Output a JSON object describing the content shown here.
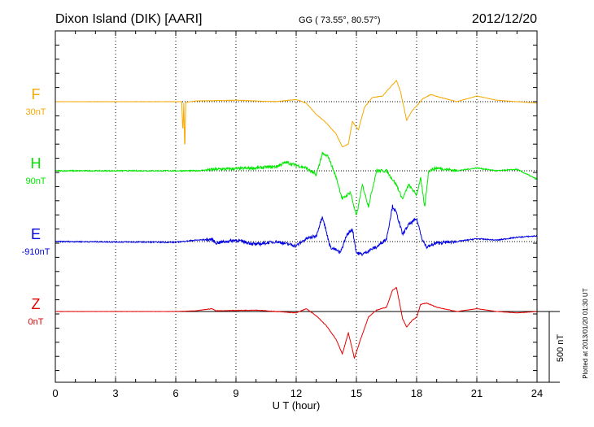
{
  "chart_data": {
    "type": "line",
    "title": "Dixon Island (DIK)  [AARI]",
    "subtitle": "GG ( 73.55°,  80.57°)",
    "date": "2012/12/20",
    "xlabel": "U T (hour)",
    "xlim": [
      0,
      24
    ],
    "xticks": [
      "0",
      "3",
      "6",
      "9",
      "12",
      "15",
      "18",
      "21",
      "24"
    ],
    "grid": true,
    "scale_bar": "500 nT",
    "footer": "Plotted at 2013/01/20 01:30 UT",
    "series": [
      {
        "name": "F",
        "offset_label": "30nT",
        "color": "#f5a800",
        "points": [
          [
            0,
            0
          ],
          [
            6.3,
            0
          ],
          [
            6.35,
            -230
          ],
          [
            6.4,
            -10
          ],
          [
            6.45,
            -370
          ],
          [
            6.5,
            -5
          ],
          [
            7,
            5
          ],
          [
            9,
            10
          ],
          [
            11,
            0
          ],
          [
            12,
            15
          ],
          [
            12.5,
            -10
          ],
          [
            13,
            -90
          ],
          [
            13.5,
            -150
          ],
          [
            14,
            -230
          ],
          [
            14.3,
            -320
          ],
          [
            14.6,
            -300
          ],
          [
            14.8,
            -140
          ],
          [
            15.1,
            -200
          ],
          [
            15.4,
            -40
          ],
          [
            15.8,
            30
          ],
          [
            16.3,
            40
          ],
          [
            16.8,
            120
          ],
          [
            17,
            150
          ],
          [
            17.2,
            70
          ],
          [
            17.5,
            -130
          ],
          [
            17.8,
            -60
          ],
          [
            18,
            -30
          ],
          [
            18.3,
            20
          ],
          [
            18.7,
            50
          ],
          [
            19.2,
            30
          ],
          [
            20,
            0
          ],
          [
            21,
            40
          ],
          [
            22,
            10
          ],
          [
            24,
            -10
          ]
        ]
      },
      {
        "name": "H",
        "offset_label": "90nT",
        "color": "#00e800",
        "points": [
          [
            0,
            0
          ],
          [
            5,
            0
          ],
          [
            7,
            0
          ],
          [
            8,
            10
          ],
          [
            9,
            15
          ],
          [
            10,
            20
          ],
          [
            11,
            30
          ],
          [
            11.5,
            60
          ],
          [
            12,
            40
          ],
          [
            12.5,
            20
          ],
          [
            13,
            -30
          ],
          [
            13.3,
            120
          ],
          [
            13.6,
            100
          ],
          [
            14,
            -50
          ],
          [
            14.3,
            -200
          ],
          [
            14.7,
            -150
          ],
          [
            15,
            -320
          ],
          [
            15.3,
            -100
          ],
          [
            15.6,
            -250
          ],
          [
            16,
            0
          ],
          [
            16.5,
            0
          ],
          [
            17,
            -100
          ],
          [
            17.3,
            -200
          ],
          [
            17.6,
            -100
          ],
          [
            18,
            -170
          ],
          [
            18.2,
            -50
          ],
          [
            18.4,
            -260
          ],
          [
            18.6,
            0
          ],
          [
            19,
            20
          ],
          [
            20,
            0
          ],
          [
            21,
            20
          ],
          [
            22,
            0
          ],
          [
            23,
            10
          ],
          [
            24,
            -60
          ]
        ]
      },
      {
        "name": "E",
        "offset_label": "-910nT",
        "color": "#0000e0",
        "points": [
          [
            0,
            0
          ],
          [
            6,
            -5
          ],
          [
            7,
            10
          ],
          [
            7.8,
            15
          ],
          [
            8,
            -10
          ],
          [
            9,
            10
          ],
          [
            10,
            -20
          ],
          [
            11,
            0
          ],
          [
            12,
            -30
          ],
          [
            12.5,
            20
          ],
          [
            13,
            40
          ],
          [
            13.3,
            180
          ],
          [
            13.7,
            -40
          ],
          [
            14,
            -60
          ],
          [
            14.2,
            -80
          ],
          [
            14.5,
            40
          ],
          [
            14.8,
            90
          ],
          [
            15,
            -80
          ],
          [
            15.3,
            -90
          ],
          [
            15.8,
            -50
          ],
          [
            16,
            -40
          ],
          [
            16.5,
            20
          ],
          [
            16.8,
            250
          ],
          [
            17,
            200
          ],
          [
            17.3,
            50
          ],
          [
            17.6,
            120
          ],
          [
            18,
            160
          ],
          [
            18.3,
            10
          ],
          [
            18.5,
            -40
          ],
          [
            19,
            -10
          ],
          [
            20,
            0
          ],
          [
            21,
            20
          ],
          [
            22,
            10
          ],
          [
            23,
            30
          ],
          [
            24,
            40
          ]
        ]
      },
      {
        "name": "Z",
        "offset_label": "0nT",
        "color": "#e80000",
        "points": [
          [
            0,
            0
          ],
          [
            6,
            0
          ],
          [
            7,
            5
          ],
          [
            7.8,
            20
          ],
          [
            8,
            5
          ],
          [
            10,
            10
          ],
          [
            11,
            0
          ],
          [
            12,
            -10
          ],
          [
            12.5,
            20
          ],
          [
            13,
            -30
          ],
          [
            13.5,
            -100
          ],
          [
            14,
            -200
          ],
          [
            14.3,
            -300
          ],
          [
            14.6,
            -150
          ],
          [
            14.9,
            -330
          ],
          [
            15.2,
            -200
          ],
          [
            15.6,
            -40
          ],
          [
            16,
            10
          ],
          [
            16.5,
            30
          ],
          [
            16.8,
            150
          ],
          [
            17,
            170
          ],
          [
            17.3,
            -50
          ],
          [
            17.5,
            -110
          ],
          [
            17.8,
            -60
          ],
          [
            18,
            -40
          ],
          [
            18.2,
            50
          ],
          [
            18.5,
            60
          ],
          [
            19,
            30
          ],
          [
            20,
            0
          ],
          [
            21,
            20
          ],
          [
            22,
            0
          ],
          [
            23,
            -10
          ],
          [
            24,
            0
          ]
        ]
      }
    ]
  }
}
